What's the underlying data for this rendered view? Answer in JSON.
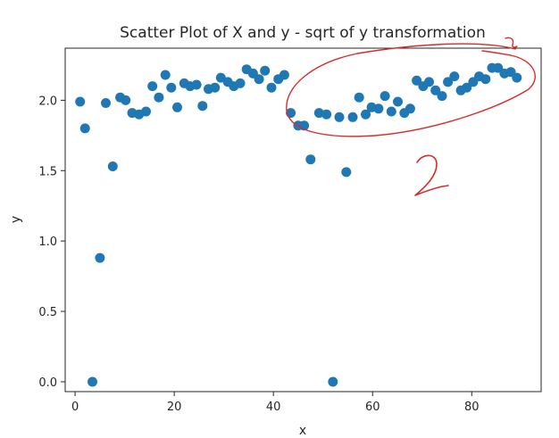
{
  "chart_data": {
    "type": "scatter",
    "title": "Scatter Plot of X and y - sqrt of y transformation",
    "xlabel": "x",
    "ylabel": "y",
    "xlim": [
      -2,
      94
    ],
    "ylim": [
      -0.07,
      2.37
    ],
    "xticks": [
      0,
      20,
      40,
      60,
      80
    ],
    "yticks": [
      0.0,
      0.5,
      1.0,
      1.5,
      2.0
    ],
    "xtick_labels": [
      "0",
      "20",
      "40",
      "60",
      "80"
    ],
    "ytick_labels": [
      "0.0",
      "0.5",
      "1.0",
      "1.5",
      "2.0"
    ],
    "marker_color": "#1f77b4",
    "grid": false,
    "x": [
      1,
      2,
      3.5,
      5,
      6.2,
      7.6,
      9.1,
      10.2,
      11.5,
      12.9,
      14.3,
      15.6,
      16.9,
      18.2,
      19.4,
      20.6,
      22,
      23.2,
      24.5,
      25.7,
      26.9,
      28.2,
      29.4,
      30.8,
      32,
      33.3,
      34.6,
      35.9,
      37.1,
      38.3,
      39.6,
      41,
      42.2,
      43.5,
      45,
      46.2,
      47.5,
      49.2,
      50.7,
      52,
      53.3,
      54.7,
      56,
      57.3,
      58.6,
      59.8,
      61.2,
      62.5,
      63.8,
      65.1,
      66.4,
      67.6,
      68.9,
      70.2,
      71.4,
      72.7,
      74,
      75.2,
      76.5,
      77.8,
      79,
      80.3,
      81.5,
      82.8,
      84.1,
      85.3,
      86.6,
      87.9,
      89.1
    ],
    "y": [
      1.99,
      1.8,
      0.0,
      0.88,
      1.98,
      1.53,
      2.02,
      2.0,
      1.91,
      1.9,
      1.92,
      2.1,
      2.02,
      2.18,
      2.09,
      1.95,
      2.12,
      2.1,
      2.11,
      1.96,
      2.08,
      2.09,
      2.16,
      2.13,
      2.1,
      2.12,
      2.22,
      2.19,
      2.15,
      2.21,
      2.09,
      2.15,
      2.18,
      1.91,
      1.82,
      1.82,
      1.58,
      1.91,
      1.9,
      0.0,
      1.88,
      1.49,
      1.88,
      2.02,
      1.9,
      1.95,
      1.94,
      2.03,
      1.92,
      1.99,
      1.91,
      1.94,
      2.14,
      2.1,
      2.13,
      2.07,
      2.03,
      2.13,
      2.17,
      2.07,
      2.09,
      2.13,
      2.17,
      2.15,
      2.23,
      2.23,
      2.19,
      2.2,
      2.16
    ]
  },
  "annotations": {
    "handwritten_mark": "2",
    "stroke_color": "#d92b2b"
  }
}
